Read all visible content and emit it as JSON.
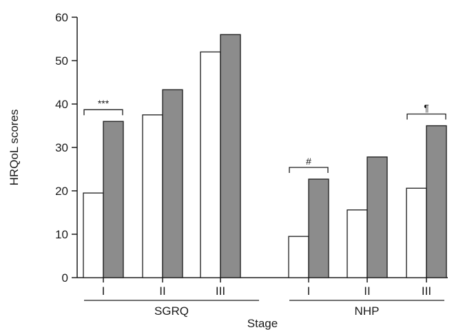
{
  "chart_data": {
    "type": "bar",
    "ylabel": "HRQoL scores",
    "xlabel": "Stage",
    "ylim": [
      0,
      60
    ],
    "yticks": [
      0,
      10,
      20,
      30,
      40,
      50,
      60
    ],
    "grid": false,
    "series_colors": [
      "#ffffff",
      "#8c8c8c"
    ],
    "groups": [
      {
        "name": "SGRQ",
        "categories": [
          "I",
          "II",
          "III"
        ],
        "series": [
          {
            "values": [
              19.5,
              37.5,
              52
            ]
          },
          {
            "values": [
              36,
              43.3,
              56
            ]
          }
        ],
        "annotations": [
          {
            "category_index": 0,
            "text": "***"
          }
        ]
      },
      {
        "name": "NHP",
        "categories": [
          "I",
          "II",
          "III"
        ],
        "series": [
          {
            "values": [
              9.5,
              15.6,
              20.6
            ]
          },
          {
            "values": [
              22.7,
              27.8,
              35
            ]
          }
        ],
        "annotations": [
          {
            "category_index": 0,
            "text": "#"
          },
          {
            "category_index": 2,
            "text": "¶"
          }
        ]
      }
    ]
  }
}
